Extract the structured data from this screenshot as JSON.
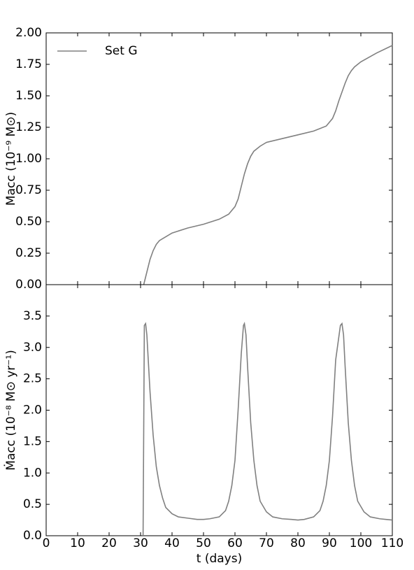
{
  "chart_data": [
    {
      "type": "line",
      "ylabel": "Macc (10⁻⁹ M⊙)",
      "legend": "upper left",
      "x": [
        31,
        32,
        33,
        34,
        35,
        36,
        38,
        40,
        45,
        50,
        55,
        58,
        60,
        61,
        62,
        63,
        64,
        65,
        66,
        68,
        70,
        75,
        80,
        85,
        89,
        91,
        92,
        93,
        94,
        95,
        96,
        97,
        98,
        100,
        105,
        110
      ],
      "series": [
        {
          "name": "Set G",
          "color": "#808080",
          "values": [
            0,
            0.1,
            0.2,
            0.27,
            0.32,
            0.35,
            0.38,
            0.41,
            0.45,
            0.48,
            0.52,
            0.56,
            0.62,
            0.68,
            0.78,
            0.88,
            0.96,
            1.02,
            1.06,
            1.1,
            1.13,
            1.16,
            1.19,
            1.22,
            1.26,
            1.32,
            1.38,
            1.46,
            1.53,
            1.6,
            1.66,
            1.7,
            1.73,
            1.77,
            1.84,
            1.9
          ]
        }
      ],
      "xlim": [
        0,
        110
      ],
      "xticks": [
        0,
        10,
        20,
        30,
        40,
        50,
        60,
        70,
        80,
        90,
        100,
        110
      ],
      "ylim": [
        0,
        2
      ],
      "yticks": [
        {
          "value": 0,
          "label": "0.00"
        },
        0.25,
        {
          "value": 0.5,
          "label": "0.50"
        },
        0.75,
        {
          "value": 1,
          "label": "1.00"
        },
        1.25,
        {
          "value": 1.5,
          "label": "1.50"
        },
        1.75,
        {
          "value": 2,
          "label": "2.00"
        }
      ]
    },
    {
      "type": "line",
      "xlabel": "t (days)",
      "ylabel": "Ṁacc (10⁻⁸ M⊙ yr⁻¹)",
      "x": [
        30.8,
        31.2,
        31.6,
        32,
        33,
        34,
        35,
        36,
        37,
        38,
        40,
        42,
        45,
        48,
        50,
        52,
        55,
        57,
        58,
        59,
        60,
        61,
        62,
        62.7,
        63,
        63.5,
        64,
        65,
        66,
        67,
        68,
        70,
        72,
        75,
        78,
        80,
        82,
        85,
        87,
        88,
        89,
        90,
        91,
        92,
        93.5,
        94,
        94.5,
        95,
        96,
        97,
        98,
        99,
        101,
        103,
        106,
        108,
        110
      ],
      "series": [
        {
          "name": "Set G",
          "color": "#808080",
          "values": [
            0,
            3.35,
            3.38,
            3.2,
            2.3,
            1.6,
            1.1,
            0.8,
            0.6,
            0.45,
            0.35,
            0.3,
            0.28,
            0.26,
            0.26,
            0.27,
            0.3,
            0.4,
            0.55,
            0.8,
            1.2,
            2.0,
            2.9,
            3.35,
            3.38,
            3.2,
            2.7,
            1.8,
            1.2,
            0.8,
            0.55,
            0.38,
            0.3,
            0.27,
            0.26,
            0.25,
            0.26,
            0.3,
            0.4,
            0.55,
            0.8,
            1.2,
            1.9,
            2.8,
            3.35,
            3.38,
            3.2,
            2.7,
            1.8,
            1.2,
            0.8,
            0.55,
            0.38,
            0.3,
            0.27,
            0.26,
            0.25
          ]
        }
      ],
      "xlim": [
        0,
        110
      ],
      "xticks": [
        0,
        10,
        20,
        30,
        40,
        50,
        60,
        70,
        80,
        90,
        100,
        110
      ],
      "ylim": [
        0,
        4
      ],
      "yticks": [
        {
          "value": 0,
          "label": "0.0"
        },
        0.5,
        {
          "value": 1,
          "label": "1.0"
        },
        1.5,
        {
          "value": 2,
          "label": "2.0"
        },
        2.5,
        {
          "value": 3,
          "label": "3.0"
        },
        3.5
      ]
    }
  ]
}
